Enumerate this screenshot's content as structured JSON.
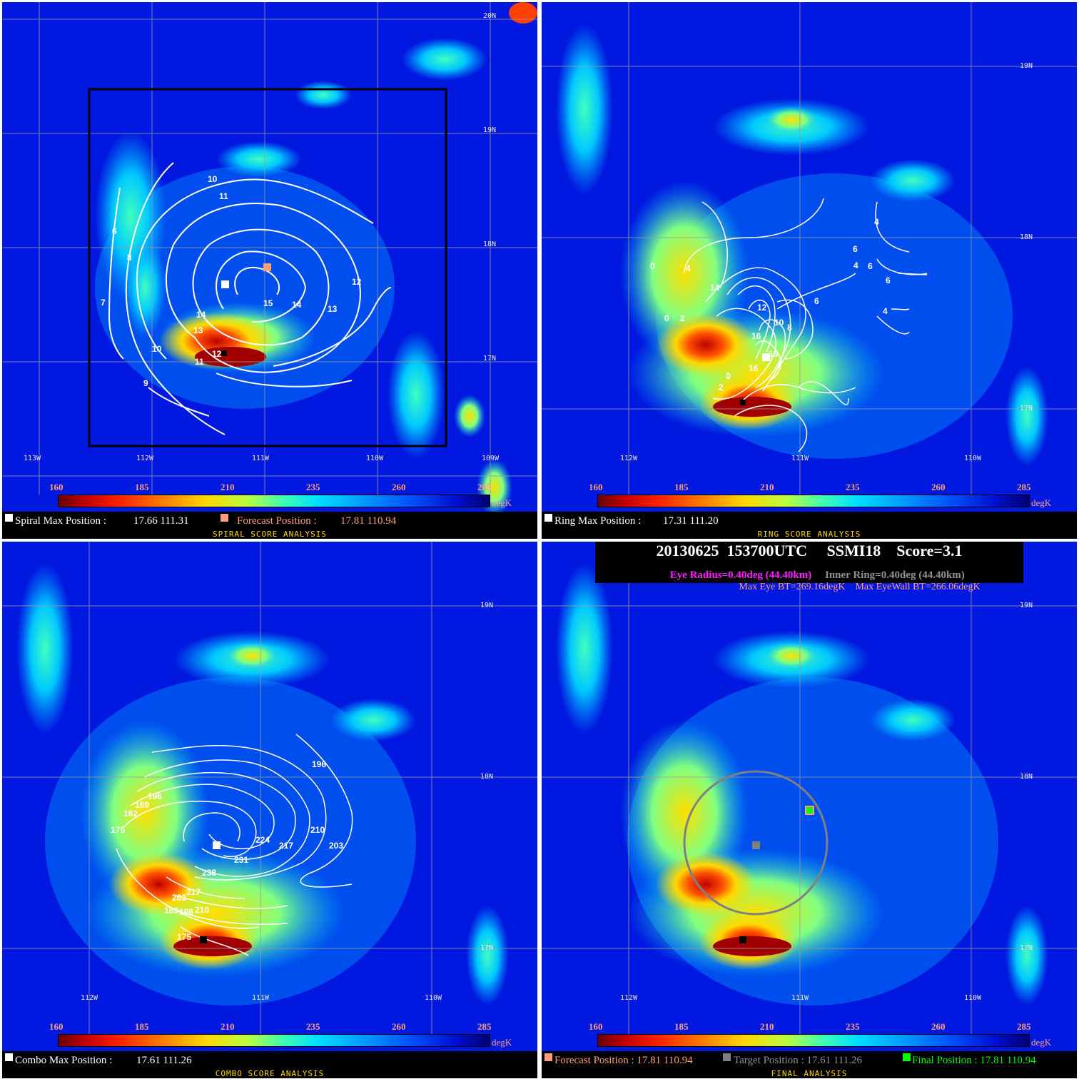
{
  "colorbar": {
    "ticks": [
      "160",
      "185",
      "210",
      "235",
      "260",
      "285"
    ],
    "unit": "degK"
  },
  "spiral": {
    "max_label": "Spiral Max Position :",
    "max_value": "17.66 111.31",
    "fc_label": "Forecast Position :",
    "fc_value": "17.81 110.94",
    "title": "SPIRAL SCORE ANALYSIS",
    "lat_labels": [
      "20N",
      "19N",
      "18N",
      "17N"
    ],
    "lon_labels": [
      "113W",
      "112W",
      "111W",
      "110W",
      "109W"
    ],
    "contours": [
      "10",
      "11",
      "6",
      "8",
      "7",
      "12",
      "13",
      "15",
      "14",
      "14",
      "13",
      "12",
      "10",
      "11",
      "9",
      "12"
    ]
  },
  "ring": {
    "max_label": "Ring Max Position :",
    "max_value": "17.31 111.20",
    "title": "RING SCORE ANALYSIS",
    "lat_labels": [
      "19N",
      "18N",
      "17N"
    ],
    "lon_labels": [
      "112W",
      "111W",
      "110W"
    ],
    "contours": [
      "4",
      "0",
      "4",
      "6",
      "4",
      "6",
      "6",
      "14",
      "6",
      "4",
      "0",
      "2",
      "12",
      "10",
      "8",
      "16",
      "16",
      "16",
      "0",
      "2"
    ]
  },
  "combo": {
    "max_label": "Combo Max Position :",
    "max_value": "17.61 111.26",
    "title": "COMBO SCORE ANALYSIS",
    "lat_labels": [
      "19N",
      "18N",
      "17N"
    ],
    "lon_labels": [
      "112W",
      "111W",
      "110W"
    ],
    "contours": [
      "196",
      "196",
      "189",
      "182",
      "175",
      "224",
      "217",
      "210",
      "203",
      "231",
      "238",
      "217",
      "203",
      "189",
      "196",
      "210",
      "175"
    ]
  },
  "final": {
    "header_line1": "20130625  153700UTC     SSMI18    Score=3.1",
    "eye_radius": "Eye Radius=0.40deg (44.40km)",
    "inner_ring": "Inner Ring=0.40deg (44.40km)",
    "max_eye": "Max Eye BT=269.16degK",
    "max_eyewall": "Max EyeWall BT=266.06degK",
    "fc_label": "Forecast Position : 17.81 110.94",
    "target_label": "Target Position : 17.61 111.26",
    "final_label": "Final Position : 17.81 110.94",
    "title": "FINAL ANALYSIS",
    "lat_labels": [
      "19N",
      "18N",
      "17N"
    ],
    "lon_labels": [
      "112W",
      "111W",
      "110W"
    ]
  },
  "colors": {
    "forecast": "#ff9f7a",
    "target": "#808080",
    "final": "#00ff00",
    "eye": "#ff20ff"
  }
}
